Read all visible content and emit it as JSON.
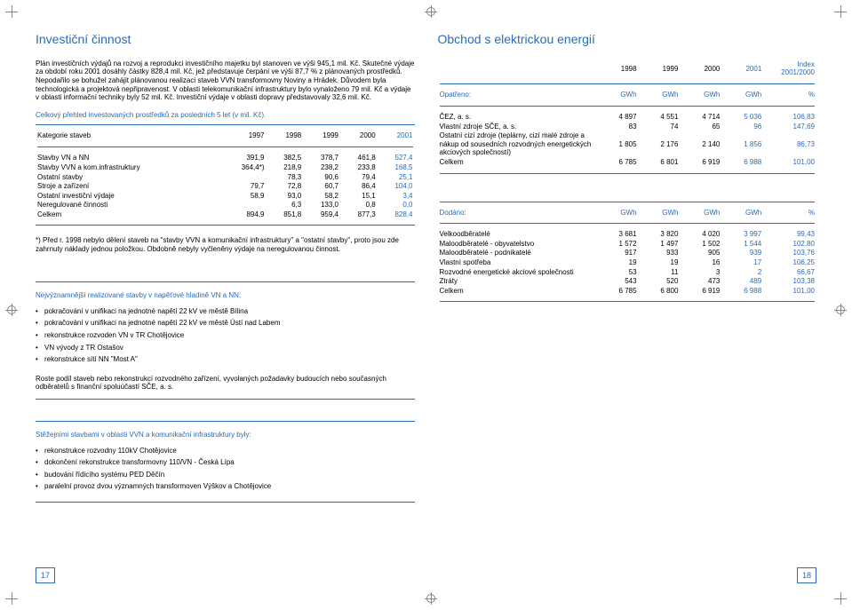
{
  "left": {
    "title": "Investiční činnost",
    "intro": "Plán investičních výdajů na rozvoj a reprodukci investičního majetku byl stanoven ve výši 945,1 mil. Kč. Skutečné výdaje za období roku 2001 dosáhly částky 828,4 mil. Kč, jež představuje čerpání ve výši 87,7 % z plánovaných prostředků. Nepodařilo se bohužel zahájit plánovanou realizaci staveb VVN transformovny Noviny a Hrádek. Důvodem byla technologická a projektová nepřipravenost. V oblasti telekomunikační infrastruktury bylo vynaloženo 79 mil. Kč a výdaje v oblasti informační techniky byly 52 mil. Kč. Investiční výdaje v oblasti dopravy představovaly 32,6 mil. Kč.",
    "table1_caption": "Celkový přehled investovaných prostředků za posledních 5 let (v mil. Kč).",
    "table1": {
      "header": [
        "Kategorie staveb",
        "1997",
        "1998",
        "1999",
        "2000",
        "2001"
      ],
      "rows": [
        [
          "Stavby VN a NN",
          "391,9",
          "382,5",
          "378,7",
          "461,8",
          "527,4"
        ],
        [
          "Stavby VVN a kom.infrastruktury",
          "364,4*)",
          "218,9",
          "238,2",
          "233,8",
          "168,5"
        ],
        [
          "Ostatní stavby",
          "",
          "78,3",
          "90,6",
          "79,4",
          "25,1"
        ],
        [
          "Stroje a zařízení",
          "79,7",
          "72,8",
          "60,7",
          "86,4",
          "104,0"
        ],
        [
          "Ostatní investiční výdaje",
          "58,9",
          "93,0",
          "58,2",
          "15,1",
          "3,4"
        ],
        [
          "Neregulované činnosti",
          "",
          "6,3",
          "133,0",
          "0,8",
          "0,0"
        ],
        [
          "Celkem",
          "894,9",
          "851,8",
          "959,4",
          "877,3",
          "828,4"
        ]
      ]
    },
    "footnote": "*) Před r. 1998 nebylo dělení staveb na \"stavby VVN a komunikační infrastruktury\" a \"ostatní stavby\", proto jsou zde zahrnuty náklady jednou položkou. Obdobně nebyly vyčleněny výdaje na neregulovanou činnost.",
    "vnnn_head": "Nejvýznamnější realizované stavby v napěťové hladině VN a NN:",
    "vnnn_items": [
      "pokračování v unifikaci na jednotné napětí 22 kV ve městě Bílina",
      "pokračování v unifikaci na jednotné napětí 22 kV ve městě Ústí nad Labem",
      "rekonstrukce rozvoden VN v TR Chotějovice",
      "VN vývody z TR Ostašov",
      "rekonstrukce sítí NN \"Most A\""
    ],
    "vnnn_para": "Roste podíl staveb nebo rekonstrukcí rozvodného zařízení, vyvolaných požadavky budoucích nebo současných odběratelů s finanční spoluúčastí SČE, a. s.",
    "vvn_head": "Stěžejními stavbami v oblasti VVN a komunikační infrastruktury byly:",
    "vvn_items": [
      "rekonstrukce rozvodny 110kV Chotějovice",
      "dokončení rekonstrukce transformovny 110/VN - Česká Lípa",
      "budování řídicího systému PED Děčín",
      "paralelní provoz dvou významných transformoven Výškov a Chotějovice"
    ],
    "page": "17"
  },
  "right": {
    "title": "Obchod s elektrickou energií",
    "t_opatreno": {
      "header": [
        "",
        "1998",
        "1999",
        "2000",
        "2001",
        "Index 2001/2000"
      ],
      "unit_row": [
        "Opatřeno:",
        "GWh",
        "GWh",
        "GWh",
        "GWh",
        "%"
      ],
      "rows": [
        [
          "ČEZ, a. s.",
          "4 897",
          "4 551",
          "4 714",
          "5 036",
          "106,83"
        ],
        [
          "Vlastní zdroje SČE, a. s.",
          "83",
          "74",
          "65",
          "96",
          "147,69"
        ],
        [
          "Ostatní cizí zdroje (teplárny, cizí malé zdroje a nákup od sousedních rozvodných energetických akciových společností)",
          "1 805",
          "2 176",
          "2 140",
          "1 856",
          "86,73"
        ],
        [
          "Celkem",
          "6 785",
          "6 801",
          "6 919",
          "6 988",
          "101,00"
        ]
      ]
    },
    "t_dodano": {
      "unit_row": [
        "Dodáno:",
        "GWh",
        "GWh",
        "GWh",
        "GWh",
        "%"
      ],
      "rows": [
        [
          "Velkoodběratelé",
          "3 681",
          "3 820",
          "4 020",
          "3 997",
          "99,43"
        ],
        [
          "Maloodběratelé - obyvatelstvo",
          "1 572",
          "1 497",
          "1 502",
          "1 544",
          "102,80"
        ],
        [
          "Maloodběratelé - podnikatelé",
          "917",
          "933",
          "905",
          "939",
          "103,76"
        ],
        [
          "Vlastní spotřeba",
          "19",
          "19",
          "16",
          "17",
          "106,25"
        ],
        [
          "Rozvodné energetické akciové společnosti",
          "53",
          "11",
          "3",
          "2",
          "66,67"
        ],
        [
          "Ztráty",
          "543",
          "520",
          "473",
          "489",
          "103,38"
        ],
        [
          "Celkem",
          "6 785",
          "6 800",
          "6 919",
          "6 988",
          "101,00"
        ]
      ]
    },
    "page": "18"
  },
  "colors": {
    "accent": "#2a6bb3"
  }
}
